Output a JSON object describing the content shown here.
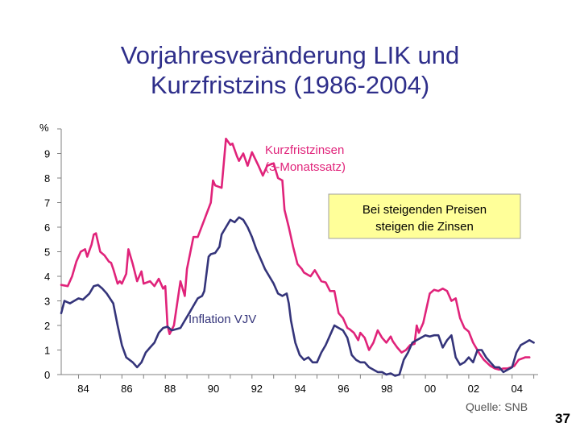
{
  "title_line1": "Vorjahresveränderung LIK und",
  "title_line2": "Kurzfristzins (1986-2004)",
  "source": "Quelle: SNB",
  "page_number": "37",
  "chart_data": {
    "type": "line",
    "title": "Vorjahresveränderung LIK und Kurzfristzins (1986-2004)",
    "ylabel": "%",
    "xlabel": "",
    "ylim": [
      0,
      10
    ],
    "yticks": [
      0,
      1,
      2,
      3,
      4,
      5,
      6,
      7,
      8,
      9
    ],
    "xlim": [
      1983.2,
      2005.2
    ],
    "xticks": [
      1984,
      1986,
      1988,
      1990,
      1992,
      1994,
      1996,
      1998,
      2000,
      2002,
      2004
    ],
    "xtick_labels": [
      "84",
      "86",
      "88",
      "90",
      "92",
      "94",
      "96",
      "98",
      "00",
      "02",
      "04"
    ],
    "grid": false,
    "colors": {
      "rate": "#e0237a",
      "inflation": "#34347a",
      "callout_bg": "#ffff99",
      "axis": "#808080"
    },
    "series": [
      {
        "name": "Kurzfristzinsen (3-Monatssatz)",
        "label_lines": [
          "Kurzfristzinsen",
          "(3-Monatssatz)"
        ],
        "color": "#e0237a",
        "points": [
          [
            1983.2,
            3.65
          ],
          [
            1983.5,
            3.6
          ],
          [
            1983.7,
            4.0
          ],
          [
            1983.9,
            4.6
          ],
          [
            1984.1,
            5.0
          ],
          [
            1984.3,
            5.1
          ],
          [
            1984.4,
            4.8
          ],
          [
            1984.6,
            5.3
          ],
          [
            1984.7,
            5.7
          ],
          [
            1984.8,
            5.75
          ],
          [
            1985.0,
            5.0
          ],
          [
            1985.2,
            4.85
          ],
          [
            1985.4,
            4.6
          ],
          [
            1985.5,
            4.55
          ],
          [
            1985.6,
            4.3
          ],
          [
            1985.8,
            3.7
          ],
          [
            1985.9,
            3.8
          ],
          [
            1986.0,
            3.7
          ],
          [
            1986.2,
            4.1
          ],
          [
            1986.3,
            5.1
          ],
          [
            1986.5,
            4.5
          ],
          [
            1986.7,
            3.8
          ],
          [
            1986.9,
            4.2
          ],
          [
            1987.0,
            3.7
          ],
          [
            1987.3,
            3.8
          ],
          [
            1987.5,
            3.6
          ],
          [
            1987.7,
            3.9
          ],
          [
            1987.9,
            3.5
          ],
          [
            1988.0,
            3.6
          ],
          [
            1988.1,
            2.0
          ],
          [
            1988.2,
            1.65
          ],
          [
            1988.4,
            2.0
          ],
          [
            1988.7,
            3.8
          ],
          [
            1988.8,
            3.5
          ],
          [
            1988.9,
            3.2
          ],
          [
            1989.0,
            4.3
          ],
          [
            1989.3,
            5.6
          ],
          [
            1989.5,
            5.6
          ],
          [
            1989.8,
            6.3
          ],
          [
            1990.1,
            7.0
          ],
          [
            1990.2,
            7.9
          ],
          [
            1990.3,
            7.7
          ],
          [
            1990.6,
            7.6
          ],
          [
            1990.8,
            9.6
          ],
          [
            1991.0,
            9.35
          ],
          [
            1991.1,
            9.4
          ],
          [
            1991.3,
            8.9
          ],
          [
            1991.4,
            8.7
          ],
          [
            1991.6,
            9.0
          ],
          [
            1991.8,
            8.5
          ],
          [
            1992.0,
            9.05
          ],
          [
            1992.3,
            8.5
          ],
          [
            1992.5,
            8.1
          ],
          [
            1992.7,
            8.5
          ],
          [
            1993.0,
            8.6
          ],
          [
            1993.2,
            8.0
          ],
          [
            1993.4,
            7.9
          ],
          [
            1993.5,
            6.7
          ],
          [
            1993.7,
            6.0
          ],
          [
            1993.9,
            5.2
          ],
          [
            1994.1,
            4.5
          ],
          [
            1994.3,
            4.3
          ],
          [
            1994.4,
            4.15
          ],
          [
            1994.7,
            4.0
          ],
          [
            1994.9,
            4.25
          ],
          [
            1995.2,
            3.8
          ],
          [
            1995.4,
            3.75
          ],
          [
            1995.6,
            3.4
          ],
          [
            1995.8,
            3.4
          ],
          [
            1996.0,
            2.5
          ],
          [
            1996.2,
            2.3
          ],
          [
            1996.4,
            1.9
          ],
          [
            1996.5,
            1.85
          ],
          [
            1996.7,
            1.7
          ],
          [
            1996.9,
            1.4
          ],
          [
            1997.0,
            1.7
          ],
          [
            1997.2,
            1.5
          ],
          [
            1997.4,
            1.0
          ],
          [
            1997.6,
            1.3
          ],
          [
            1997.8,
            1.8
          ],
          [
            1998.0,
            1.5
          ],
          [
            1998.2,
            1.3
          ],
          [
            1998.4,
            1.55
          ],
          [
            1998.5,
            1.35
          ],
          [
            1998.7,
            1.1
          ],
          [
            1998.9,
            0.9
          ],
          [
            1999.1,
            1.0
          ],
          [
            1999.3,
            1.2
          ],
          [
            1999.5,
            1.25
          ],
          [
            1999.6,
            2.0
          ],
          [
            1999.7,
            1.7
          ],
          [
            1999.9,
            2.1
          ],
          [
            2000.2,
            3.3
          ],
          [
            2000.4,
            3.45
          ],
          [
            2000.6,
            3.4
          ],
          [
            2000.8,
            3.5
          ],
          [
            2001.0,
            3.4
          ],
          [
            2001.2,
            3.0
          ],
          [
            2001.4,
            3.1
          ],
          [
            2001.6,
            2.3
          ],
          [
            2001.8,
            1.9
          ],
          [
            2002.0,
            1.75
          ],
          [
            2002.2,
            1.3
          ],
          [
            2002.5,
            0.85
          ],
          [
            2002.7,
            0.6
          ],
          [
            2003.0,
            0.35
          ],
          [
            2003.2,
            0.25
          ],
          [
            2003.4,
            0.2
          ],
          [
            2003.6,
            0.25
          ],
          [
            2003.8,
            0.25
          ],
          [
            2004.1,
            0.35
          ],
          [
            2004.3,
            0.6
          ],
          [
            2004.6,
            0.7
          ],
          [
            2004.8,
            0.7
          ]
        ]
      },
      {
        "name": "Inflation VJV",
        "label_lines": [
          "Inflation VJV"
        ],
        "color": "#34347a",
        "points": [
          [
            1983.2,
            2.5
          ],
          [
            1983.35,
            3.0
          ],
          [
            1983.6,
            2.9
          ],
          [
            1983.8,
            3.0
          ],
          [
            1984.0,
            3.1
          ],
          [
            1984.2,
            3.05
          ],
          [
            1984.5,
            3.3
          ],
          [
            1984.7,
            3.6
          ],
          [
            1984.9,
            3.65
          ],
          [
            1985.1,
            3.5
          ],
          [
            1985.3,
            3.3
          ],
          [
            1985.6,
            2.9
          ],
          [
            1985.8,
            2.0
          ],
          [
            1986.0,
            1.2
          ],
          [
            1986.2,
            0.7
          ],
          [
            1986.5,
            0.5
          ],
          [
            1986.7,
            0.3
          ],
          [
            1986.9,
            0.5
          ],
          [
            1987.1,
            0.9
          ],
          [
            1987.3,
            1.1
          ],
          [
            1987.5,
            1.3
          ],
          [
            1987.7,
            1.7
          ],
          [
            1987.9,
            1.9
          ],
          [
            1988.1,
            1.95
          ],
          [
            1988.3,
            1.8
          ],
          [
            1988.5,
            1.85
          ],
          [
            1988.7,
            1.9
          ],
          [
            1988.9,
            2.2
          ],
          [
            1989.1,
            2.5
          ],
          [
            1989.3,
            2.8
          ],
          [
            1989.5,
            3.1
          ],
          [
            1989.7,
            3.2
          ],
          [
            1989.8,
            3.4
          ],
          [
            1990.0,
            4.8
          ],
          [
            1990.1,
            4.9
          ],
          [
            1990.3,
            4.95
          ],
          [
            1990.5,
            5.2
          ],
          [
            1990.6,
            5.7
          ],
          [
            1990.8,
            6.0
          ],
          [
            1991.0,
            6.3
          ],
          [
            1991.2,
            6.2
          ],
          [
            1991.4,
            6.4
          ],
          [
            1991.6,
            6.3
          ],
          [
            1991.8,
            6.0
          ],
          [
            1992.0,
            5.6
          ],
          [
            1992.2,
            5.1
          ],
          [
            1992.4,
            4.7
          ],
          [
            1992.6,
            4.3
          ],
          [
            1992.8,
            4.0
          ],
          [
            1993.0,
            3.7
          ],
          [
            1993.2,
            3.3
          ],
          [
            1993.4,
            3.2
          ],
          [
            1993.6,
            3.3
          ],
          [
            1993.7,
            2.9
          ],
          [
            1993.8,
            2.2
          ],
          [
            1994.0,
            1.3
          ],
          [
            1994.2,
            0.8
          ],
          [
            1994.4,
            0.6
          ],
          [
            1994.6,
            0.7
          ],
          [
            1994.8,
            0.5
          ],
          [
            1995.0,
            0.5
          ],
          [
            1995.2,
            0.9
          ],
          [
            1995.4,
            1.2
          ],
          [
            1995.6,
            1.6
          ],
          [
            1995.8,
            2.0
          ],
          [
            1996.0,
            1.9
          ],
          [
            1996.2,
            1.8
          ],
          [
            1996.4,
            1.5
          ],
          [
            1996.6,
            0.8
          ],
          [
            1996.8,
            0.6
          ],
          [
            1997.0,
            0.5
          ],
          [
            1997.2,
            0.5
          ],
          [
            1997.4,
            0.3
          ],
          [
            1997.6,
            0.2
          ],
          [
            1997.8,
            0.1
          ],
          [
            1998.0,
            0.1
          ],
          [
            1998.2,
            0.0
          ],
          [
            1998.4,
            0.05
          ],
          [
            1998.6,
            -0.05
          ],
          [
            1998.8,
            0.0
          ],
          [
            1999.0,
            0.6
          ],
          [
            1999.2,
            0.9
          ],
          [
            1999.4,
            1.3
          ],
          [
            1999.6,
            1.4
          ],
          [
            1999.8,
            1.5
          ],
          [
            2000.0,
            1.6
          ],
          [
            2000.2,
            1.55
          ],
          [
            2000.4,
            1.6
          ],
          [
            2000.6,
            1.6
          ],
          [
            2000.8,
            1.1
          ],
          [
            2001.0,
            1.4
          ],
          [
            2001.2,
            1.6
          ],
          [
            2001.4,
            0.7
          ],
          [
            2001.6,
            0.4
          ],
          [
            2001.8,
            0.5
          ],
          [
            2002.0,
            0.7
          ],
          [
            2002.2,
            0.5
          ],
          [
            2002.4,
            1.0
          ],
          [
            2002.6,
            1.0
          ],
          [
            2002.8,
            0.7
          ],
          [
            2003.0,
            0.5
          ],
          [
            2003.2,
            0.3
          ],
          [
            2003.4,
            0.3
          ],
          [
            2003.6,
            0.1
          ],
          [
            2003.8,
            0.2
          ],
          [
            2004.0,
            0.3
          ],
          [
            2004.2,
            0.9
          ],
          [
            2004.4,
            1.2
          ],
          [
            2004.6,
            1.3
          ],
          [
            2004.8,
            1.4
          ],
          [
            2005.0,
            1.3
          ]
        ]
      }
    ],
    "annotations": [
      {
        "text_lines": [
          "Bei steigenden Preisen",
          "steigen die Zinsen"
        ],
        "style": "callout",
        "placement": "upper-right"
      }
    ]
  }
}
